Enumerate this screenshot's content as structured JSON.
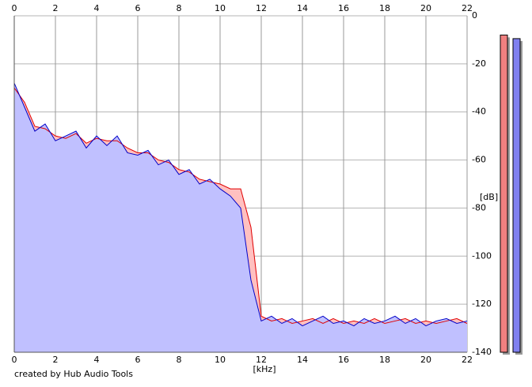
{
  "chart_data": {
    "type": "line",
    "footer": "created by Hub Audio Tools",
    "xlabel": "[kHz]",
    "ylabel": "[dB]",
    "x": [
      0,
      0.5,
      1,
      1.5,
      2,
      2.5,
      3,
      3.5,
      4,
      4.5,
      5,
      5.5,
      6,
      6.5,
      7,
      7.5,
      8,
      8.5,
      9,
      9.5,
      10,
      10.5,
      11,
      11.5,
      12,
      12.5,
      13,
      13.5,
      14,
      14.5,
      15,
      15.5,
      16,
      16.5,
      17,
      17.5,
      18,
      18.5,
      19,
      19.5,
      20,
      20.5,
      21,
      21.5,
      22
    ],
    "series": [
      {
        "color": "#e00000",
        "fill": "#ffc0c0",
        "values": [
          -30,
          -36,
          -46,
          -47,
          -50,
          -51,
          -49,
          -53,
          -51,
          -52,
          -52,
          -55,
          -57,
          -57,
          -60,
          -61,
          -64,
          -65,
          -68,
          -69,
          -70,
          -72,
          -72,
          -88,
          -125,
          -127,
          -126,
          -128,
          -127,
          -126,
          -128,
          -126,
          -128,
          -127,
          -128,
          -126,
          -128,
          -127,
          -126,
          -128,
          -127,
          -128,
          -127,
          -126,
          -128
        ]
      },
      {
        "color": "#0000c8",
        "fill": "#c0c0ff",
        "values": [
          -28,
          -38,
          -48,
          -45,
          -52,
          -50,
          -48,
          -55,
          -50,
          -54,
          -50,
          -57,
          -58,
          -56,
          -62,
          -60,
          -66,
          -64,
          -70,
          -68,
          -72,
          -75,
          -80,
          -110,
          -127,
          -125,
          -128,
          -126,
          -129,
          -127,
          -125,
          -128,
          -127,
          -129,
          -126,
          -128,
          -127,
          -125,
          -128,
          -126,
          -129,
          -127,
          -126,
          -128,
          -127
        ]
      }
    ],
    "meters": [
      {
        "color": "#f08080",
        "value": -8
      },
      {
        "color": "#8080f0",
        "value": -9.5
      }
    ],
    "xlim": [
      0,
      22
    ],
    "xticks": [
      0,
      2,
      4,
      6,
      8,
      10,
      12,
      14,
      16,
      18,
      20,
      22
    ],
    "ylim": [
      -140,
      0
    ],
    "yticks": [
      0,
      -20,
      -40,
      -60,
      -80,
      -100,
      -120,
      -140
    ],
    "grid": true
  }
}
